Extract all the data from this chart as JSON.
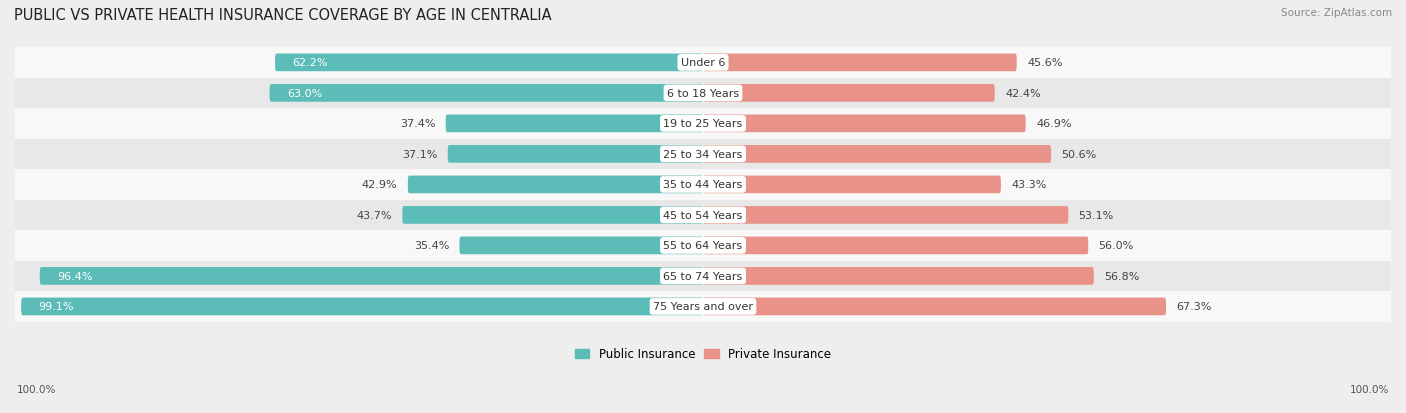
{
  "title": "PUBLIC VS PRIVATE HEALTH INSURANCE COVERAGE BY AGE IN CENTRALIA",
  "source": "Source: ZipAtlas.com",
  "categories": [
    "Under 6",
    "6 to 18 Years",
    "19 to 25 Years",
    "25 to 34 Years",
    "35 to 44 Years",
    "45 to 54 Years",
    "55 to 64 Years",
    "65 to 74 Years",
    "75 Years and over"
  ],
  "public_values": [
    62.2,
    63.0,
    37.4,
    37.1,
    42.9,
    43.7,
    35.4,
    96.4,
    99.1
  ],
  "private_values": [
    45.6,
    42.4,
    46.9,
    50.6,
    43.3,
    53.1,
    56.0,
    56.8,
    67.3
  ],
  "public_color": "#5bbcb8",
  "private_color": "#e8928a",
  "public_label": "Public Insurance",
  "private_label": "Private Insurance",
  "bar_height": 0.58,
  "bg_color": "#eeeeee",
  "row_colors": [
    "#f8f8f8",
    "#e8e8e8"
  ],
  "max_value": 100.0,
  "title_fontsize": 10.5,
  "legend_fontsize": 8.5,
  "category_fontsize": 8,
  "value_fontsize": 8,
  "source_fontsize": 7.5,
  "footer_fontsize": 7.5,
  "white_text_threshold": 50
}
